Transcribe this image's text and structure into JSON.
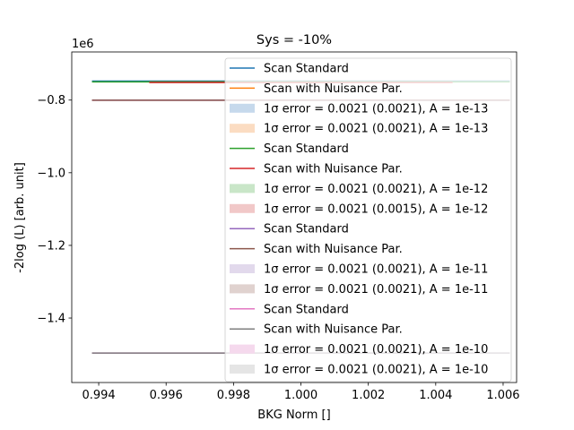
{
  "chart_data": {
    "type": "line",
    "title": "Sys = -10%",
    "xlabel": "BKG Norm []",
    "ylabel": "-2log (L) [arb. unit]",
    "y_offset_label": "1e6",
    "xlim": [
      0.9932,
      1.0064
    ],
    "ylim": [
      -1.5775,
      -0.6675
    ],
    "xticks": [
      0.994,
      0.996,
      0.998,
      1.0,
      1.002,
      1.004,
      1.006
    ],
    "xtick_labels": [
      "0.994",
      "0.996",
      "0.998",
      "1.000",
      "1.002",
      "1.004",
      "1.006"
    ],
    "yticks": [
      -0.8,
      -1.0,
      -1.2,
      -1.4
    ],
    "ytick_labels": [
      "−0.8",
      "−1.0",
      "−1.2",
      "−1.4"
    ],
    "grid": false,
    "legend_position": "upper-right",
    "series": [
      {
        "name": "Scan Standard",
        "color": "#1f77b4",
        "x": [
          0.9938,
          1.0062
        ],
        "y": [
          -0.7477,
          -0.7477
        ]
      },
      {
        "name": "Scan with Nuisance Par.",
        "color": "#ff7f0e",
        "x": [
          0.9955,
          1.0045
        ],
        "y": [
          -0.7497,
          -0.7497
        ]
      },
      {
        "name": "Scan Standard",
        "color": "#2ca02c",
        "x": [
          0.9938,
          1.0062
        ],
        "y": [
          -0.7497,
          -0.7497
        ]
      },
      {
        "name": "Scan with Nuisance Par.",
        "color": "#d62728",
        "x": [
          0.9955,
          1.0045
        ],
        "y": [
          -0.7517,
          -0.7517
        ]
      },
      {
        "name": "Scan Standard",
        "color": "#9467bd",
        "x": [
          0.9938,
          1.0062
        ],
        "y": [
          -0.8005,
          -0.8005
        ]
      },
      {
        "name": "Scan with Nuisance Par.",
        "color": "#8c564b",
        "x": [
          0.9938,
          1.0062
        ],
        "y": [
          -0.8005,
          -0.8005
        ]
      },
      {
        "name": "Scan Standard",
        "color": "#e377c2",
        "x": [
          0.9938,
          1.0062
        ],
        "y": [
          -1.4965,
          -1.4965
        ]
      },
      {
        "name": "Scan with Nuisance Par.",
        "color": "#7f7f7f",
        "x": [
          0.9938,
          1.0062
        ],
        "y": [
          -1.4965,
          -1.4965
        ]
      }
    ],
    "legend": [
      {
        "kind": "line",
        "color": "#1f77b4",
        "label": "Scan Standard"
      },
      {
        "kind": "line",
        "color": "#ff7f0e",
        "label": "Scan with Nuisance Par."
      },
      {
        "kind": "patch",
        "color": "#c6d9ec",
        "label": "1σ error = 0.0021 (0.0021), A = 1e-13"
      },
      {
        "kind": "patch",
        "color": "#fbdcc2",
        "label": "1σ error = 0.0021 (0.0021), A = 1e-13"
      },
      {
        "kind": "line",
        "color": "#2ca02c",
        "label": "Scan Standard"
      },
      {
        "kind": "line",
        "color": "#d62728",
        "label": "Scan with Nuisance Par."
      },
      {
        "kind": "patch",
        "color": "#c9e6c8",
        "label": "1σ error = 0.0021 (0.0021), A = 1e-12"
      },
      {
        "kind": "patch",
        "color": "#f1c8c8",
        "label": "1σ error = 0.0021 (0.0015), A = 1e-12"
      },
      {
        "kind": "line",
        "color": "#9467bd",
        "label": "Scan Standard"
      },
      {
        "kind": "line",
        "color": "#8c564b",
        "label": "Scan with Nuisance Par."
      },
      {
        "kind": "patch",
        "color": "#e2d9ec",
        "label": "1σ error = 0.0021 (0.0021), A = 1e-11"
      },
      {
        "kind": "patch",
        "color": "#e0d2cf",
        "label": "1σ error = 0.0021 (0.0021), A = 1e-11"
      },
      {
        "kind": "line",
        "color": "#e377c2",
        "label": "Scan Standard"
      },
      {
        "kind": "line",
        "color": "#7f7f7f",
        "label": "Scan with Nuisance Par."
      },
      {
        "kind": "patch",
        "color": "#f5d9ed",
        "label": "1σ error = 0.0021 (0.0021), A = 1e-10"
      },
      {
        "kind": "patch",
        "color": "#e5e5e5",
        "label": "1σ error = 0.0021 (0.0021), A = 1e-10"
      }
    ]
  }
}
